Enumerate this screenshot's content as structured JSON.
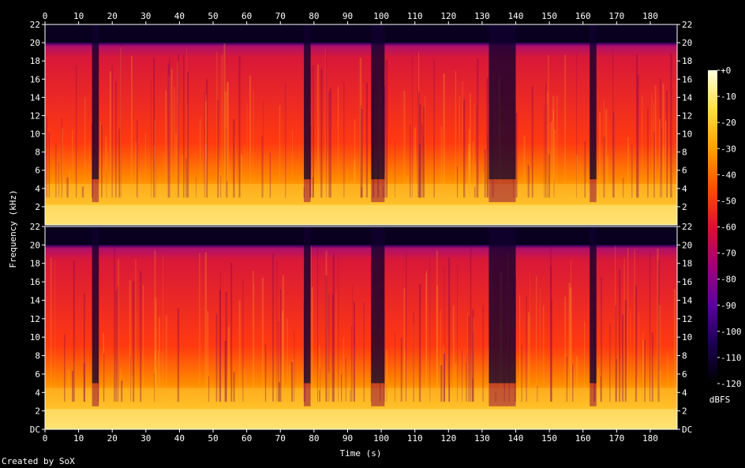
{
  "footer": {
    "creator": "Created by SoX"
  },
  "chart_data": {
    "type": "heatmap",
    "title": "",
    "xlabel": "Time (s)",
    "ylabel": "Frequency (kHz)",
    "xlim": [
      0,
      188
    ],
    "x_ticks": [
      "0",
      "10",
      "20",
      "30",
      "40",
      "50",
      "60",
      "70",
      "80",
      "90",
      "100",
      "110",
      "120",
      "130",
      "140",
      "150",
      "160",
      "170",
      "180"
    ],
    "channels": [
      {
        "ylim": [
          0,
          22
        ],
        "y_ticks_left": [
          "22",
          "20",
          "18",
          "16",
          "14",
          "12",
          "10",
          "8",
          "6",
          "4",
          "2"
        ],
        "y_ticks_right": [
          "22",
          "20",
          "18",
          "16",
          "14",
          "12",
          "10",
          "8",
          "6",
          "4",
          "2"
        ]
      },
      {
        "ylim": [
          0,
          22
        ],
        "y_ticks_left": [
          "22",
          "20",
          "18",
          "16",
          "14",
          "12",
          "10",
          "8",
          "6",
          "4",
          "2",
          "DC"
        ],
        "y_ticks_right": [
          "22",
          "20",
          "18",
          "16",
          "14",
          "12",
          "10",
          "8",
          "6",
          "4",
          "2",
          "DC"
        ]
      }
    ],
    "cutoff_khz": 20,
    "low_energy_segments_s": [
      [
        14,
        16
      ],
      [
        77,
        79
      ],
      [
        97,
        101
      ],
      [
        132,
        140
      ],
      [
        162,
        164
      ]
    ],
    "colorbar": {
      "label": "dBFS",
      "range": [
        -120,
        0
      ],
      "ticks": [
        "+0",
        "-10",
        "-20",
        "-30",
        "-40",
        "-50",
        "-60",
        "-70",
        "-80",
        "-90",
        "-100",
        "-110",
        "-120"
      ],
      "colors": [
        "#000000",
        "#1a0050",
        "#5a00a0",
        "#a0007a",
        "#dc1030",
        "#ff5000",
        "#ffa000",
        "#ffe040",
        "#ffffe0"
      ]
    }
  }
}
